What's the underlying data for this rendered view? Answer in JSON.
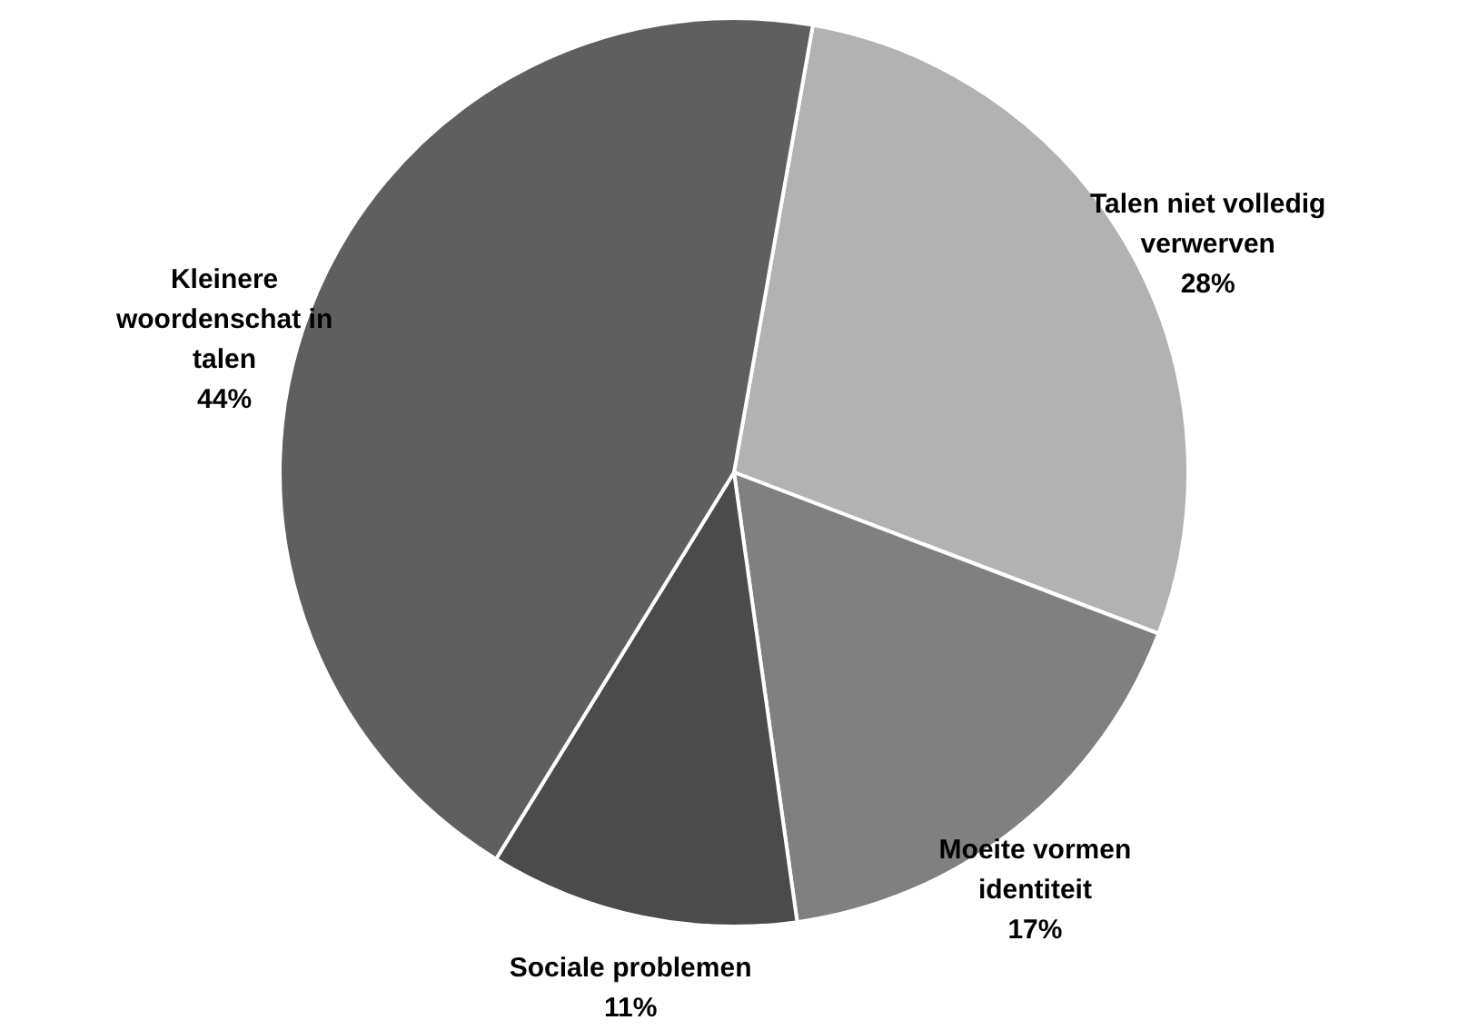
{
  "chart_data": {
    "type": "pie",
    "categories": [
      "Talen niet volledig verwerven",
      "Moeite vormen identiteit",
      "Sociale problemen",
      "Kleinere woordenschat in talen"
    ],
    "values": [
      28,
      17,
      11,
      44
    ],
    "colors": [
      "#b2b2b2",
      "#808080",
      "#4b4b4b",
      "#5f5f5f"
    ],
    "value_labels": [
      "28%",
      "17%",
      "11%",
      "44%"
    ]
  }
}
